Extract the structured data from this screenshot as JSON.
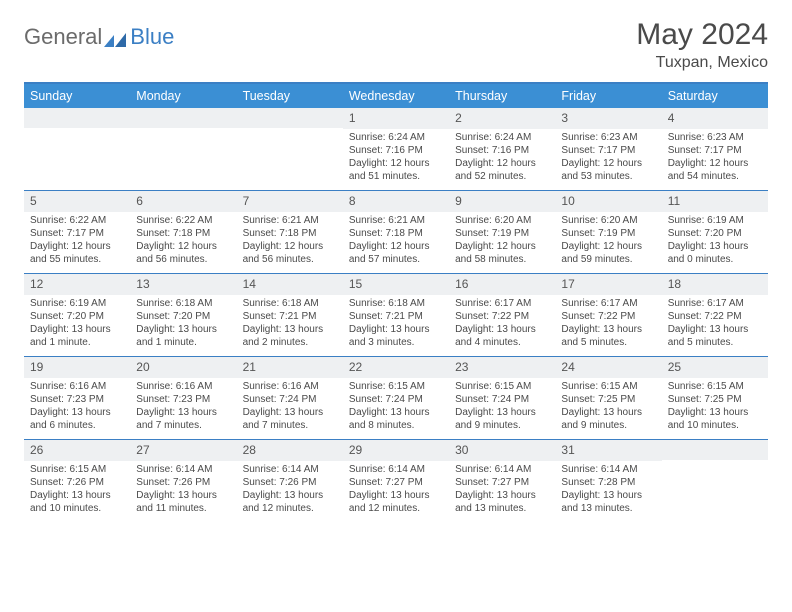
{
  "brand": {
    "part1": "General",
    "part2": "Blue"
  },
  "title": "May 2024",
  "location": "Tuxpan, Mexico",
  "colors": {
    "header_bg": "#3b8fd4",
    "header_text": "#ffffff",
    "divider": "#3b7fc4",
    "daynum_bg": "#eef0f2",
    "text": "#4a4a4a",
    "brand_accent": "#3b7fc4"
  },
  "day_names": [
    "Sunday",
    "Monday",
    "Tuesday",
    "Wednesday",
    "Thursday",
    "Friday",
    "Saturday"
  ],
  "weeks": [
    [
      {
        "n": "",
        "sr": "",
        "ss": "",
        "dl": ""
      },
      {
        "n": "",
        "sr": "",
        "ss": "",
        "dl": ""
      },
      {
        "n": "",
        "sr": "",
        "ss": "",
        "dl": ""
      },
      {
        "n": "1",
        "sr": "Sunrise: 6:24 AM",
        "ss": "Sunset: 7:16 PM",
        "dl": "Daylight: 12 hours and 51 minutes."
      },
      {
        "n": "2",
        "sr": "Sunrise: 6:24 AM",
        "ss": "Sunset: 7:16 PM",
        "dl": "Daylight: 12 hours and 52 minutes."
      },
      {
        "n": "3",
        "sr": "Sunrise: 6:23 AM",
        "ss": "Sunset: 7:17 PM",
        "dl": "Daylight: 12 hours and 53 minutes."
      },
      {
        "n": "4",
        "sr": "Sunrise: 6:23 AM",
        "ss": "Sunset: 7:17 PM",
        "dl": "Daylight: 12 hours and 54 minutes."
      }
    ],
    [
      {
        "n": "5",
        "sr": "Sunrise: 6:22 AM",
        "ss": "Sunset: 7:17 PM",
        "dl": "Daylight: 12 hours and 55 minutes."
      },
      {
        "n": "6",
        "sr": "Sunrise: 6:22 AM",
        "ss": "Sunset: 7:18 PM",
        "dl": "Daylight: 12 hours and 56 minutes."
      },
      {
        "n": "7",
        "sr": "Sunrise: 6:21 AM",
        "ss": "Sunset: 7:18 PM",
        "dl": "Daylight: 12 hours and 56 minutes."
      },
      {
        "n": "8",
        "sr": "Sunrise: 6:21 AM",
        "ss": "Sunset: 7:18 PM",
        "dl": "Daylight: 12 hours and 57 minutes."
      },
      {
        "n": "9",
        "sr": "Sunrise: 6:20 AM",
        "ss": "Sunset: 7:19 PM",
        "dl": "Daylight: 12 hours and 58 minutes."
      },
      {
        "n": "10",
        "sr": "Sunrise: 6:20 AM",
        "ss": "Sunset: 7:19 PM",
        "dl": "Daylight: 12 hours and 59 minutes."
      },
      {
        "n": "11",
        "sr": "Sunrise: 6:19 AM",
        "ss": "Sunset: 7:20 PM",
        "dl": "Daylight: 13 hours and 0 minutes."
      }
    ],
    [
      {
        "n": "12",
        "sr": "Sunrise: 6:19 AM",
        "ss": "Sunset: 7:20 PM",
        "dl": "Daylight: 13 hours and 1 minute."
      },
      {
        "n": "13",
        "sr": "Sunrise: 6:18 AM",
        "ss": "Sunset: 7:20 PM",
        "dl": "Daylight: 13 hours and 1 minute."
      },
      {
        "n": "14",
        "sr": "Sunrise: 6:18 AM",
        "ss": "Sunset: 7:21 PM",
        "dl": "Daylight: 13 hours and 2 minutes."
      },
      {
        "n": "15",
        "sr": "Sunrise: 6:18 AM",
        "ss": "Sunset: 7:21 PM",
        "dl": "Daylight: 13 hours and 3 minutes."
      },
      {
        "n": "16",
        "sr": "Sunrise: 6:17 AM",
        "ss": "Sunset: 7:22 PM",
        "dl": "Daylight: 13 hours and 4 minutes."
      },
      {
        "n": "17",
        "sr": "Sunrise: 6:17 AM",
        "ss": "Sunset: 7:22 PM",
        "dl": "Daylight: 13 hours and 5 minutes."
      },
      {
        "n": "18",
        "sr": "Sunrise: 6:17 AM",
        "ss": "Sunset: 7:22 PM",
        "dl": "Daylight: 13 hours and 5 minutes."
      }
    ],
    [
      {
        "n": "19",
        "sr": "Sunrise: 6:16 AM",
        "ss": "Sunset: 7:23 PM",
        "dl": "Daylight: 13 hours and 6 minutes."
      },
      {
        "n": "20",
        "sr": "Sunrise: 6:16 AM",
        "ss": "Sunset: 7:23 PM",
        "dl": "Daylight: 13 hours and 7 minutes."
      },
      {
        "n": "21",
        "sr": "Sunrise: 6:16 AM",
        "ss": "Sunset: 7:24 PM",
        "dl": "Daylight: 13 hours and 7 minutes."
      },
      {
        "n": "22",
        "sr": "Sunrise: 6:15 AM",
        "ss": "Sunset: 7:24 PM",
        "dl": "Daylight: 13 hours and 8 minutes."
      },
      {
        "n": "23",
        "sr": "Sunrise: 6:15 AM",
        "ss": "Sunset: 7:24 PM",
        "dl": "Daylight: 13 hours and 9 minutes."
      },
      {
        "n": "24",
        "sr": "Sunrise: 6:15 AM",
        "ss": "Sunset: 7:25 PM",
        "dl": "Daylight: 13 hours and 9 minutes."
      },
      {
        "n": "25",
        "sr": "Sunrise: 6:15 AM",
        "ss": "Sunset: 7:25 PM",
        "dl": "Daylight: 13 hours and 10 minutes."
      }
    ],
    [
      {
        "n": "26",
        "sr": "Sunrise: 6:15 AM",
        "ss": "Sunset: 7:26 PM",
        "dl": "Daylight: 13 hours and 10 minutes."
      },
      {
        "n": "27",
        "sr": "Sunrise: 6:14 AM",
        "ss": "Sunset: 7:26 PM",
        "dl": "Daylight: 13 hours and 11 minutes."
      },
      {
        "n": "28",
        "sr": "Sunrise: 6:14 AM",
        "ss": "Sunset: 7:26 PM",
        "dl": "Daylight: 13 hours and 12 minutes."
      },
      {
        "n": "29",
        "sr": "Sunrise: 6:14 AM",
        "ss": "Sunset: 7:27 PM",
        "dl": "Daylight: 13 hours and 12 minutes."
      },
      {
        "n": "30",
        "sr": "Sunrise: 6:14 AM",
        "ss": "Sunset: 7:27 PM",
        "dl": "Daylight: 13 hours and 13 minutes."
      },
      {
        "n": "31",
        "sr": "Sunrise: 6:14 AM",
        "ss": "Sunset: 7:28 PM",
        "dl": "Daylight: 13 hours and 13 minutes."
      },
      {
        "n": "",
        "sr": "",
        "ss": "",
        "dl": ""
      }
    ]
  ]
}
